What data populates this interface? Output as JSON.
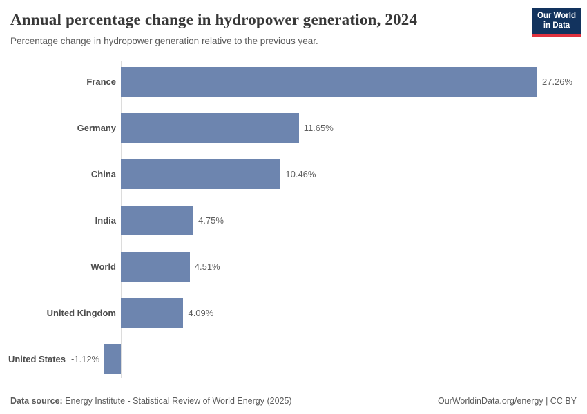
{
  "header": {
    "title": "Annual percentage change in hydropower generation, 2024",
    "subtitle": "Percentage change in hydropower generation relative to the previous year.",
    "logo": {
      "line1": "Our World",
      "line2": "in Data"
    }
  },
  "chart_data": {
    "type": "bar",
    "orientation": "horizontal",
    "title": "Annual percentage change in hydropower generation, 2024",
    "xlabel": "",
    "ylabel": "",
    "categories": [
      "France",
      "Germany",
      "China",
      "India",
      "World",
      "United Kingdom",
      "United States"
    ],
    "values": [
      27.26,
      11.65,
      10.46,
      4.75,
      4.51,
      4.09,
      -1.12
    ],
    "value_labels": [
      "27.26%",
      "11.65%",
      "10.46%",
      "4.75%",
      "4.51%",
      "4.09%",
      "-1.12%"
    ],
    "unit": "%",
    "grid": false,
    "legend": false,
    "bar_color": "#6d85af",
    "axis_color": "#dcdcdc",
    "label_color": "#4d4d4d",
    "value_color": "#5f5f5f"
  },
  "footer": {
    "source_label": "Data source:",
    "source_text": " Energy Institute - Statistical Review of World Energy (2025)",
    "link": "OurWorldinData.org/energy | CC BY"
  }
}
